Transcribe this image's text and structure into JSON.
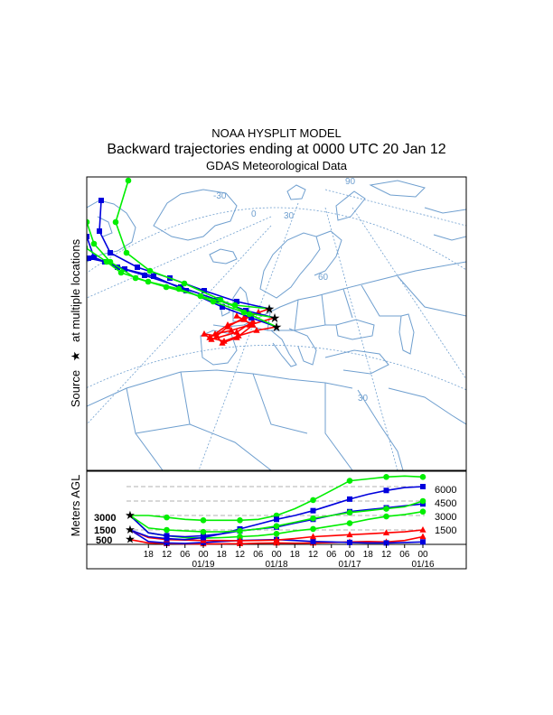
{
  "titles": {
    "line1": "NOAA HYSPLIT MODEL",
    "line2": "Backward trajectories ending at 0000 UTC 20 Jan 12",
    "line3": "GDAS Meteorological Data"
  },
  "map_label": {
    "source_prefix": "Source",
    "source_suffix": "at multiple locations",
    "star_glyph": "★",
    "grid_labels": [
      "-30",
      "0",
      "30",
      "90",
      "60",
      "30"
    ]
  },
  "colors": {
    "red": "#ff0000",
    "blue": "#0000dd",
    "green": "#00ee00",
    "map": "#6f9fcf",
    "frame": "#000000"
  },
  "chart_data": {
    "type": "line",
    "title": "Backward trajectories ending at 0000 UTC 20 Jan 12",
    "ylabel": "Meters AGL",
    "xlabel": "",
    "x_tick_labels": [
      "18",
      "12",
      "06",
      "00",
      "18",
      "12",
      "06",
      "00",
      "18",
      "12",
      "06",
      "00",
      "18",
      "12",
      "06",
      "00"
    ],
    "x_date_labels": [
      "01/19",
      "01/18",
      "01/17",
      "01/16"
    ],
    "y_axis_start_labels": [
      "3000",
      "1500",
      "500"
    ],
    "y_axis_right_labels": [
      "6000",
      "4500",
      "3000",
      "1500"
    ],
    "y_gridlines_m": [
      1500,
      3000,
      4500,
      6000
    ],
    "ylim": [
      0,
      7500
    ],
    "hours_back": [
      0,
      6,
      12,
      18,
      24,
      30,
      36,
      42,
      48,
      54,
      60,
      66,
      72,
      78,
      84,
      90,
      96
    ],
    "series": [
      {
        "name": "500 m AGL",
        "color": "red",
        "marker": "triangle",
        "values": [
          500,
          150,
          80,
          60,
          60,
          60,
          70,
          120,
          150,
          120,
          150,
          200,
          250,
          300,
          250,
          400,
          800
        ]
      },
      {
        "name": "1500 m AGL",
        "color": "blue",
        "marker": "square",
        "values": [
          1500,
          300,
          150,
          100,
          200,
          300,
          400,
          450,
          500,
          400,
          300,
          250,
          200,
          150,
          150,
          200,
          250
        ]
      },
      {
        "name": "3000 m AGL",
        "color": "green",
        "marker": "circle",
        "values": [
          3000,
          1200,
          900,
          700,
          650,
          700,
          800,
          900,
          1100,
          1400,
          1600,
          1900,
          2200,
          2600,
          2900,
          3100,
          3400
        ]
      },
      {
        "name": "1500 m AGL",
        "color": "red",
        "marker": "triangle",
        "values": [
          1500,
          700,
          500,
          450,
          400,
          400,
          380,
          400,
          450,
          600,
          800,
          900,
          1000,
          1100,
          1200,
          1300,
          1500
        ]
      },
      {
        "name": "3000 m AGL",
        "color": "blue",
        "marker": "square",
        "values": [
          3000,
          1200,
          900,
          800,
          900,
          1100,
          1400,
          1600,
          1800,
          2200,
          2600,
          3000,
          3400,
          3600,
          3800,
          4000,
          4200
        ]
      },
      {
        "name": "3000 m AGL",
        "color": "green",
        "marker": "circle",
        "values": [
          3000,
          3000,
          2800,
          2600,
          2500,
          2500,
          2500,
          2600,
          3000,
          3700,
          4600,
          5600,
          6600,
          6800,
          7000,
          7100,
          7000
        ]
      },
      {
        "name": "1500 m AGL",
        "color": "blue",
        "marker": "square",
        "values": [
          1500,
          800,
          600,
          500,
          700,
          1100,
          1600,
          2100,
          2600,
          3000,
          3500,
          4100,
          4700,
          5200,
          5600,
          5900,
          6000
        ]
      },
      {
        "name": "3000 m AGL",
        "color": "green",
        "marker": "circle",
        "values": [
          3000,
          1700,
          1500,
          1400,
          1300,
          1300,
          1400,
          1600,
          1900,
          2300,
          2700,
          3000,
          3300,
          3500,
          3700,
          3900,
          4500
        ]
      }
    ]
  }
}
